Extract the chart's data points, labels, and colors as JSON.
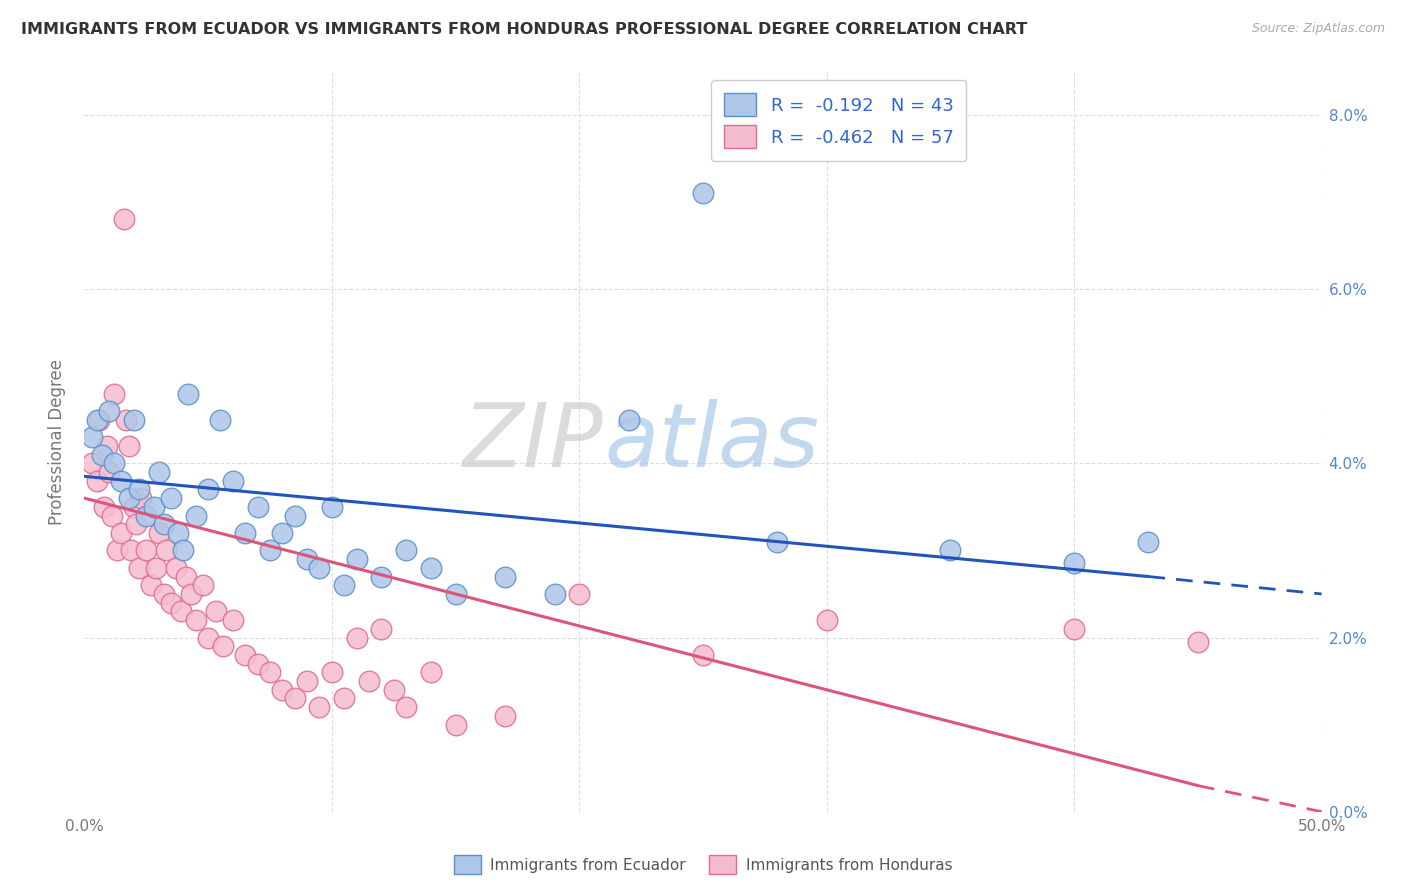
{
  "title": "IMMIGRANTS FROM ECUADOR VS IMMIGRANTS FROM HONDURAS PROFESSIONAL DEGREE CORRELATION CHART",
  "source": "Source: ZipAtlas.com",
  "ylabel": "Professional Degree",
  "right_yticks": [
    "0.0%",
    "2.0%",
    "4.0%",
    "6.0%",
    "8.0%"
  ],
  "right_ytick_vals": [
    0.0,
    2.0,
    4.0,
    6.0,
    8.0
  ],
  "xlim": [
    0,
    50
  ],
  "ylim": [
    0,
    8.5
  ],
  "ecuador_color": "#aec6e8",
  "ecuador_edge": "#5b8fc9",
  "honduras_color": "#f5bcd0",
  "honduras_edge": "#e06b8b",
  "ecuador_R": -0.192,
  "ecuador_N": 43,
  "honduras_R": -0.462,
  "honduras_N": 57,
  "legend_label_ecuador": "Immigrants from Ecuador",
  "legend_label_honduras": "Immigrants from Honduras",
  "ecuador_scatter": [
    [
      0.3,
      4.3
    ],
    [
      0.5,
      4.5
    ],
    [
      0.7,
      4.1
    ],
    [
      1.0,
      4.6
    ],
    [
      1.2,
      4.0
    ],
    [
      1.5,
      3.8
    ],
    [
      1.8,
      3.6
    ],
    [
      2.0,
      4.5
    ],
    [
      2.2,
      3.7
    ],
    [
      2.5,
      3.4
    ],
    [
      2.8,
      3.5
    ],
    [
      3.0,
      3.9
    ],
    [
      3.2,
      3.3
    ],
    [
      3.5,
      3.6
    ],
    [
      3.8,
      3.2
    ],
    [
      4.0,
      3.0
    ],
    [
      4.2,
      4.8
    ],
    [
      4.5,
      3.4
    ],
    [
      5.0,
      3.7
    ],
    [
      5.5,
      4.5
    ],
    [
      6.0,
      3.8
    ],
    [
      6.5,
      3.2
    ],
    [
      7.0,
      3.5
    ],
    [
      7.5,
      3.0
    ],
    [
      8.0,
      3.2
    ],
    [
      8.5,
      3.4
    ],
    [
      9.0,
      2.9
    ],
    [
      9.5,
      2.8
    ],
    [
      10.0,
      3.5
    ],
    [
      10.5,
      2.6
    ],
    [
      11.0,
      2.9
    ],
    [
      12.0,
      2.7
    ],
    [
      13.0,
      3.0
    ],
    [
      14.0,
      2.8
    ],
    [
      15.0,
      2.5
    ],
    [
      17.0,
      2.7
    ],
    [
      19.0,
      2.5
    ],
    [
      22.0,
      4.5
    ],
    [
      25.0,
      7.1
    ],
    [
      28.0,
      3.1
    ],
    [
      35.0,
      3.0
    ],
    [
      40.0,
      2.85
    ],
    [
      43.0,
      3.1
    ]
  ],
  "honduras_scatter": [
    [
      0.3,
      4.0
    ],
    [
      0.5,
      3.8
    ],
    [
      0.6,
      4.5
    ],
    [
      0.8,
      3.5
    ],
    [
      0.9,
      4.2
    ],
    [
      1.0,
      3.9
    ],
    [
      1.1,
      3.4
    ],
    [
      1.2,
      4.8
    ],
    [
      1.3,
      3.0
    ],
    [
      1.5,
      3.2
    ],
    [
      1.6,
      6.8
    ],
    [
      1.7,
      4.5
    ],
    [
      1.8,
      4.2
    ],
    [
      1.9,
      3.0
    ],
    [
      2.0,
      3.5
    ],
    [
      2.1,
      3.3
    ],
    [
      2.2,
      2.8
    ],
    [
      2.3,
      3.6
    ],
    [
      2.5,
      3.0
    ],
    [
      2.7,
      2.6
    ],
    [
      2.9,
      2.8
    ],
    [
      3.0,
      3.2
    ],
    [
      3.2,
      2.5
    ],
    [
      3.3,
      3.0
    ],
    [
      3.5,
      2.4
    ],
    [
      3.7,
      2.8
    ],
    [
      3.9,
      2.3
    ],
    [
      4.1,
      2.7
    ],
    [
      4.3,
      2.5
    ],
    [
      4.5,
      2.2
    ],
    [
      4.8,
      2.6
    ],
    [
      5.0,
      2.0
    ],
    [
      5.3,
      2.3
    ],
    [
      5.6,
      1.9
    ],
    [
      6.0,
      2.2
    ],
    [
      6.5,
      1.8
    ],
    [
      7.0,
      1.7
    ],
    [
      7.5,
      1.6
    ],
    [
      8.0,
      1.4
    ],
    [
      8.5,
      1.3
    ],
    [
      9.0,
      1.5
    ],
    [
      9.5,
      1.2
    ],
    [
      10.0,
      1.6
    ],
    [
      10.5,
      1.3
    ],
    [
      11.0,
      2.0
    ],
    [
      11.5,
      1.5
    ],
    [
      12.0,
      2.1
    ],
    [
      12.5,
      1.4
    ],
    [
      13.0,
      1.2
    ],
    [
      14.0,
      1.6
    ],
    [
      15.0,
      1.0
    ],
    [
      17.0,
      1.1
    ],
    [
      20.0,
      2.5
    ],
    [
      25.0,
      1.8
    ],
    [
      30.0,
      2.2
    ],
    [
      40.0,
      2.1
    ],
    [
      45.0,
      1.95
    ]
  ],
  "ecuador_trend_x0": 0.0,
  "ecuador_trend_x1": 43.0,
  "ecuador_trend_y0": 3.85,
  "ecuador_trend_y1": 2.7,
  "ecuador_dash_x0": 43.0,
  "ecuador_dash_x1": 50.0,
  "ecuador_dash_y0": 2.7,
  "ecuador_dash_y1": 2.5,
  "honduras_trend_x0": 0.0,
  "honduras_trend_x1": 45.0,
  "honduras_trend_y0": 3.6,
  "honduras_trend_y1": 0.3,
  "honduras_dash_x0": 45.0,
  "honduras_dash_x1": 50.0,
  "honduras_dash_y0": 0.3,
  "honduras_dash_y1": 0.0,
  "grid_color": "#dddddd",
  "background_color": "#ffffff",
  "trend_blue": "#2255bb",
  "trend_pink": "#dd5577"
}
